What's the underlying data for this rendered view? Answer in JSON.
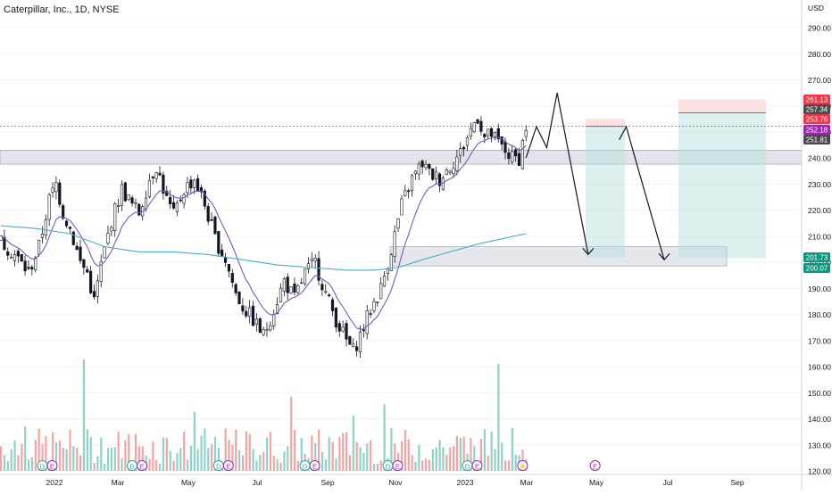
{
  "header": {
    "title": "Caterpillar, Inc., 1D, NYSE"
  },
  "colors": {
    "up": "#131722",
    "down": "#131722",
    "ema": "#7e57c2",
    "sma": "#4bacc6",
    "vol_up": "#8fd3c8",
    "vol_down": "#f5a3a3",
    "zone": "#d1d4dc",
    "target": "#b2dfdb",
    "stop": "#ffcdd2",
    "grid": "#f0f3fa"
  },
  "chart_data": {
    "type": "candlestick",
    "title": "Caterpillar, Inc., 1D, NYSE",
    "y_unit": "USD",
    "ylim": [
      117,
      298
    ],
    "y_ticks": [
      120,
      130,
      140,
      150,
      160,
      170,
      180,
      190,
      200,
      210,
      220,
      230,
      240,
      250,
      260,
      270,
      280,
      290
    ],
    "x_ticks": [
      "2022",
      "Mar",
      "May",
      "Jul",
      "Sep",
      "Nov",
      "2023",
      "Mar",
      "May",
      "Jul",
      "Sep"
    ],
    "price_path": [
      [
        0,
        208
      ],
      [
        4,
        203
      ],
      [
        8,
        196
      ],
      [
        11,
        206
      ],
      [
        14,
        224
      ],
      [
        16,
        230
      ],
      [
        18,
        219
      ],
      [
        20,
        213
      ],
      [
        23,
        200
      ],
      [
        25,
        196
      ],
      [
        27,
        185
      ],
      [
        29,
        199
      ],
      [
        32,
        216
      ],
      [
        35,
        228
      ],
      [
        38,
        222
      ],
      [
        40,
        219
      ],
      [
        43,
        232
      ],
      [
        45,
        237
      ],
      [
        48,
        224
      ],
      [
        50,
        218
      ],
      [
        53,
        228
      ],
      [
        56,
        232
      ],
      [
        59,
        222
      ],
      [
        62,
        209
      ],
      [
        65,
        201
      ],
      [
        68,
        188
      ],
      [
        70,
        183
      ],
      [
        73,
        178
      ],
      [
        76,
        172
      ],
      [
        79,
        182
      ],
      [
        82,
        193
      ],
      [
        85,
        186
      ],
      [
        88,
        196
      ],
      [
        91,
        200
      ],
      [
        94,
        188
      ],
      [
        97,
        178
      ],
      [
        100,
        170
      ],
      [
        102,
        166
      ],
      [
        104,
        172
      ],
      [
        107,
        182
      ],
      [
        110,
        190
      ],
      [
        113,
        205
      ],
      [
        116,
        222
      ],
      [
        119,
        232
      ],
      [
        122,
        238
      ],
      [
        124,
        234
      ],
      [
        127,
        232
      ],
      [
        130,
        237
      ],
      [
        133,
        242
      ],
      [
        136,
        251
      ],
      [
        138,
        256
      ],
      [
        140,
        248
      ],
      [
        142,
        249
      ],
      [
        145,
        244
      ],
      [
        148,
        240
      ],
      [
        150,
        240
      ],
      [
        152,
        252
      ]
    ],
    "sma_200": [
      [
        0,
        214
      ],
      [
        10,
        213
      ],
      [
        20,
        211
      ],
      [
        30,
        206
      ],
      [
        40,
        204
      ],
      [
        50,
        204
      ],
      [
        60,
        203
      ],
      [
        70,
        201
      ],
      [
        80,
        199
      ],
      [
        90,
        198
      ],
      [
        100,
        197
      ],
      [
        108,
        197
      ],
      [
        115,
        198
      ],
      [
        122,
        201
      ],
      [
        130,
        204
      ],
      [
        138,
        207
      ],
      [
        145,
        209
      ],
      [
        152,
        211
      ]
    ],
    "volume_range": [
      0,
      100
    ],
    "support_zone": [
      238,
      242
    ],
    "target_zone": [
      200,
      206
    ],
    "projection_path": [
      [
        152,
        240
      ],
      [
        155,
        252
      ],
      [
        158,
        244
      ],
      [
        161,
        265
      ],
      [
        170,
        203
      ],
      [
        179,
        247
      ],
      [
        181,
        252
      ],
      [
        184,
        238
      ],
      [
        192,
        201
      ]
    ],
    "positions": [
      {
        "entry": 252.18,
        "stop": 253.76,
        "target": 201.73
      },
      {
        "entry": 257.34,
        "stop": 261.13,
        "target": 201.73
      }
    ],
    "price_labels": [
      {
        "text": "261.13",
        "value": 261.13,
        "bg": "#f23645"
      },
      {
        "text": "257.34",
        "value": 257.34,
        "bg": "#4a4a4a"
      },
      {
        "text": "253.76",
        "value": 253.76,
        "bg": "#f23645"
      },
      {
        "text": "252.18",
        "value": 252.18,
        "bg": "#9c27b0"
      },
      {
        "text": "251.81",
        "value": 251.81,
        "bg": "#4a4a4a"
      },
      {
        "text": "201.73",
        "value": 201.73,
        "bg": "#089981"
      },
      {
        "text": "200.07",
        "value": 200.07,
        "bg": "#089981"
      }
    ],
    "event_markers": [
      {
        "day": 12,
        "labels": [
          "D",
          "E"
        ]
      },
      {
        "day": 38,
        "labels": [
          "D",
          "E"
        ]
      },
      {
        "day": 63,
        "labels": [
          "D",
          "E"
        ]
      },
      {
        "day": 88,
        "labels": [
          "D",
          "E"
        ]
      },
      {
        "day": 112,
        "labels": [
          "D",
          "E"
        ]
      },
      {
        "day": 135,
        "labels": [
          "D",
          "E"
        ]
      },
      {
        "day": 151,
        "labels": [
          "⚡"
        ]
      },
      {
        "day": 172,
        "labels": [
          "E"
        ]
      }
    ]
  }
}
